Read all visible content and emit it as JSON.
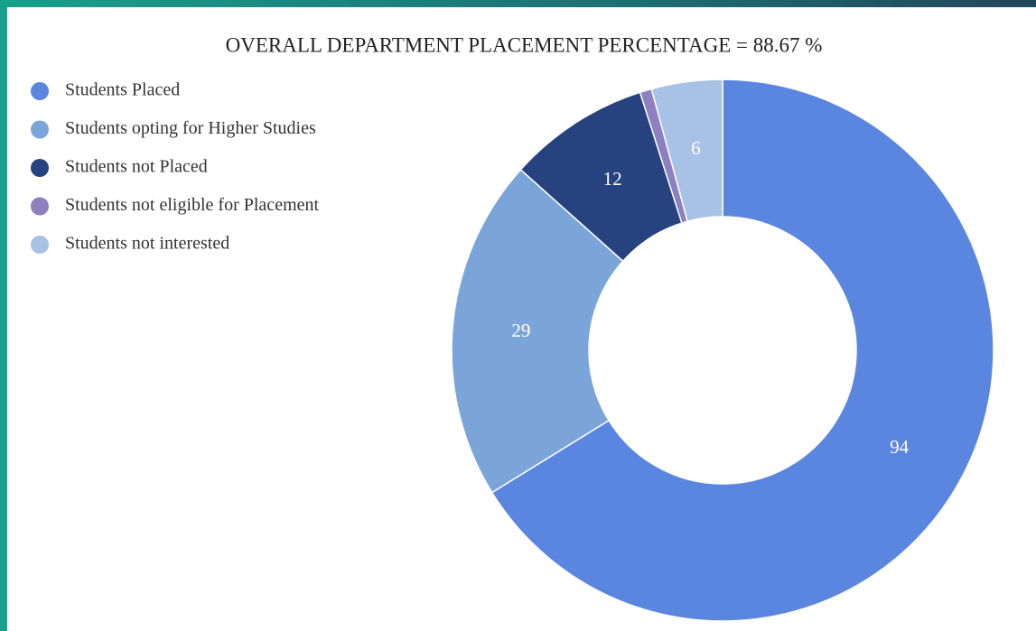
{
  "chart_data": {
    "type": "donut",
    "title": "OVERALL DEPARTMENT PLACEMENT PERCENTAGE = 88.67 %",
    "categories": [
      "Students Placed",
      "Students opting for Higher Studies",
      "Students not Placed",
      "Students not eligible for Placement",
      "Students not interested"
    ],
    "values": [
      94,
      29,
      12,
      1,
      6
    ],
    "value_labels": [
      "94",
      "29",
      "12",
      null,
      "6"
    ],
    "colors": [
      "#5a86e0",
      "#7ba5d9",
      "#26427f",
      "#8e7fc0",
      "#a7c2e5"
    ],
    "legend": "top-left"
  }
}
